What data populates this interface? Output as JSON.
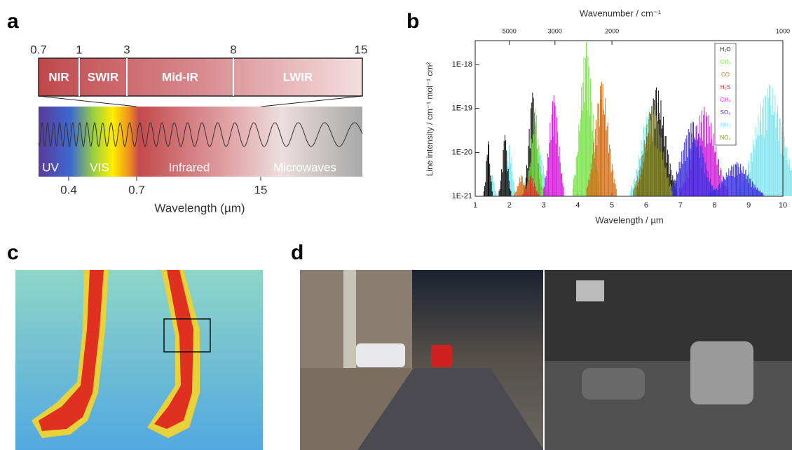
{
  "panel_labels": [
    "a",
    "b",
    "c",
    "d"
  ],
  "a": {
    "scale_top": [
      0.7,
      1,
      3,
      8,
      15
    ],
    "regions": [
      "NIR",
      "SWIR",
      "Mid-IR",
      "LWIR"
    ],
    "spectrum_labels": [
      "UV",
      "VIS",
      "Infrared",
      "Microwaves"
    ],
    "scale_bottom": [
      0.4,
      0.7,
      15
    ],
    "xlabel": "Wavelength (µm)"
  },
  "b": {
    "type": "line-spectrum",
    "title": "Wavenumber / cm⁻¹",
    "xlabel": "Wavelength / µm",
    "ylabel": "Line intensity / cm⁻¹ mol⁻¹ cm²",
    "xlim": [
      1,
      10
    ],
    "xticks": [
      1,
      2,
      3,
      4,
      5,
      6,
      7,
      8,
      9,
      10
    ],
    "x2ticks": [
      5000,
      3000,
      2000,
      1000
    ],
    "log_y": true,
    "ylim": [
      1e-21,
      3.5e-18
    ],
    "yticks": [
      {
        "value": 1e-21,
        "label": "1E-21"
      },
      {
        "value": 1e-20,
        "label": "1E-20"
      },
      {
        "value": 1e-19,
        "label": "1E-19"
      },
      {
        "value": 1e-18,
        "label": "1E-18"
      }
    ],
    "series": [
      {
        "name": "H₂O",
        "color": "#111111",
        "x": [
          1.38,
          1.87,
          2.68,
          6.3
        ],
        "values": [
          1.8e-20,
          2.5e-20,
          2.3e-19,
          3e-19
        ]
      },
      {
        "name": "CO₂",
        "color": "#7be34a",
        "x": [
          2.75,
          4.25
        ],
        "values": [
          1e-19,
          3.2e-18
        ]
      },
      {
        "name": "CO",
        "color": "#d2731f",
        "x": [
          2.35,
          4.7
        ],
        "values": [
          3e-21,
          4e-19
        ]
      },
      {
        "name": "H₂S",
        "color": "#e0312e",
        "x": [
          2.63
        ],
        "values": [
          3e-21
        ]
      },
      {
        "name": "CH₄",
        "color": "#d020d8",
        "x": [
          3.3,
          7.7
        ],
        "values": [
          2e-19,
          1.1e-19
        ]
      },
      {
        "name": "SO₂",
        "color": "#3a2ee0",
        "x": [
          7.35,
          8.65
        ],
        "values": [
          5e-20,
          6e-21
        ]
      },
      {
        "name": "NH₃",
        "color": "#7fe8ee",
        "x": [
          1.5,
          2.0,
          2.9,
          6.1,
          9.6
        ],
        "values": [
          3e-21,
          1.5e-20,
          1e-20,
          1e-19,
          3.5e-19
        ]
      },
      {
        "name": "NO₂",
        "color": "#8a8a2a",
        "x": [
          6.2
        ],
        "values": [
          1.2e-19
        ]
      }
    ]
  }
}
